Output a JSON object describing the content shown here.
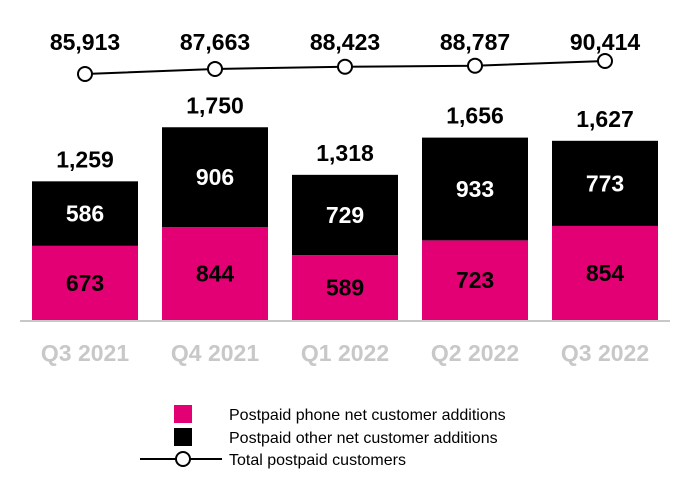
{
  "chart_data": {
    "type": "bar",
    "stacked": true,
    "categories": [
      "Q3 2021",
      "Q4 2021",
      "Q1 2022",
      "Q2 2022",
      "Q3 2022"
    ],
    "series": [
      {
        "name": "Postpaid phone net customer additions",
        "values": [
          673,
          844,
          589,
          723,
          854
        ]
      },
      {
        "name": "Postpaid other net customer additions",
        "values": [
          586,
          906,
          729,
          933,
          773
        ]
      }
    ],
    "totals": [
      "1,259",
      "1,750",
      "1,318",
      "1,656",
      "1,627"
    ],
    "line_series": {
      "name": "Total postpaid customers",
      "values": [
        85913,
        87663,
        88423,
        88787,
        90414
      ],
      "labels": [
        "85,913",
        "87,663",
        "88,423",
        "88,787",
        "90,414"
      ]
    },
    "legend": {
      "position": "bottom",
      "items": [
        "Postpaid phone net customer additions",
        "Postpaid other net customer additions",
        "Total postpaid customers"
      ]
    },
    "grid": false,
    "colors": {
      "phone": "#e20074",
      "other": "#000000",
      "line": "#000000",
      "category": "#c8c8c8"
    }
  }
}
